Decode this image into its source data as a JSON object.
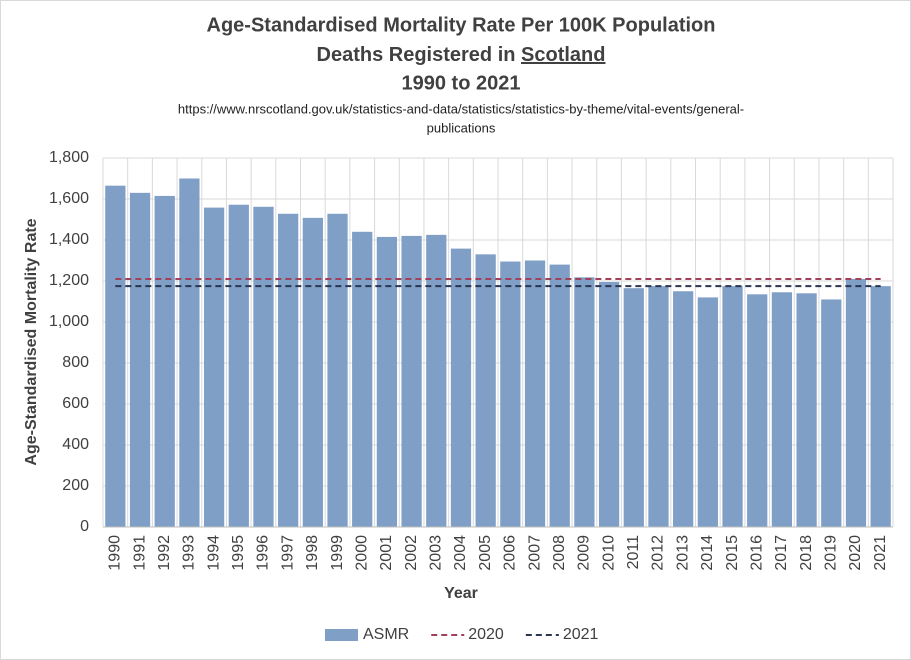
{
  "chart_data": {
    "type": "bar",
    "title": "Age-Standardised Mortality Rate Per 100K Population",
    "subtitle": [
      "Deaths Registered in",
      "Scotland"
    ],
    "period": "1990 to 2021",
    "source": [
      "https://www.nrscotland.gov.uk/statistics-and-data/statistics/statistics-by-theme/vital-events/general-",
      "publications"
    ],
    "x_label": "Year",
    "y_label": "Age-Standardised Mortality Rate",
    "categories": [
      "1990",
      "1991",
      "1992",
      "1993",
      "1994",
      "1995",
      "1996",
      "1997",
      "1998",
      "1999",
      "2000",
      "2001",
      "2002",
      "2003",
      "2004",
      "2005",
      "2006",
      "2007",
      "2008",
      "2009",
      "2010",
      "2011",
      "2012",
      "2013",
      "2014",
      "2015",
      "2016",
      "2017",
      "2018",
      "2019",
      "2020",
      "2021"
    ],
    "series": [
      {
        "name": "ASMR",
        "type": "bar",
        "color": "#7f9fc6",
        "values": [
          1665,
          1630,
          1615,
          1700,
          1558,
          1572,
          1562,
          1528,
          1508,
          1528,
          1440,
          1415,
          1420,
          1425,
          1358,
          1330,
          1295,
          1300,
          1280,
          1218,
          1195,
          1165,
          1175,
          1150,
          1120,
          1175,
          1135,
          1145,
          1140,
          1110,
          1210,
          1175
        ]
      },
      {
        "name": "2020",
        "type": "line",
        "color": "#a0405a",
        "dash": true,
        "values": [
          1210,
          1210,
          1210,
          1210,
          1210,
          1210,
          1210,
          1210,
          1210,
          1210,
          1210,
          1210,
          1210,
          1210,
          1210,
          1210,
          1210,
          1210,
          1210,
          1210,
          1210,
          1210,
          1210,
          1210,
          1210,
          1210,
          1210,
          1210,
          1210,
          1210,
          1210,
          1210
        ]
      },
      {
        "name": "2021",
        "type": "line",
        "color": "#2a3550",
        "dash": true,
        "values": [
          1175,
          1175,
          1175,
          1175,
          1175,
          1175,
          1175,
          1175,
          1175,
          1175,
          1175,
          1175,
          1175,
          1175,
          1175,
          1175,
          1175,
          1175,
          1175,
          1175,
          1175,
          1175,
          1175,
          1175,
          1175,
          1175,
          1175,
          1175,
          1175,
          1175,
          1175,
          1175
        ]
      }
    ],
    "ylim": [
      0,
      1800
    ],
    "yticks": [
      0,
      200,
      400,
      600,
      800,
      {
        "value": 1000,
        "label": "1,000"
      },
      {
        "value": 1200,
        "label": "1,200"
      },
      {
        "value": 1400,
        "label": "1,400"
      },
      {
        "value": 1600,
        "label": "1,600"
      },
      {
        "value": 1800,
        "label": "1,800"
      }
    ],
    "grid": true,
    "legend": "bottom"
  }
}
